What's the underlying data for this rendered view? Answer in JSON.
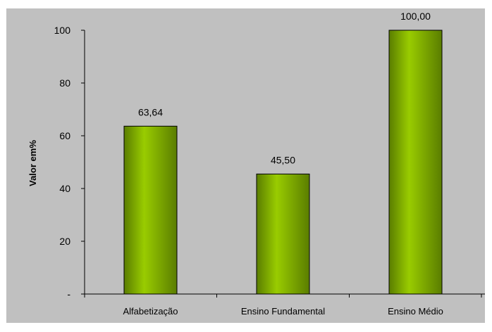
{
  "chart_data": {
    "type": "bar",
    "title": "",
    "xlabel": "",
    "ylabel": "Valor em%",
    "categories": [
      "Alfabetização",
      "Ensino Fundamental",
      "Ensino Médio"
    ],
    "values": [
      63.64,
      45.5,
      100.0
    ],
    "data_labels": [
      "63,64",
      "45,50",
      "100,00"
    ],
    "y_ticks": [
      0,
      20,
      40,
      60,
      80,
      100
    ],
    "y_tick_labels": [
      "-",
      "20",
      "40",
      "60",
      "80",
      "100"
    ],
    "ylim": [
      0,
      100
    ],
    "grid": false,
    "legend": "none",
    "colors": {
      "plot_background": "#c0c0c0",
      "bar_light": "#99cc00",
      "bar_dark": "#5a7d00",
      "bar_border": "#000000",
      "axis": "#000000"
    }
  }
}
